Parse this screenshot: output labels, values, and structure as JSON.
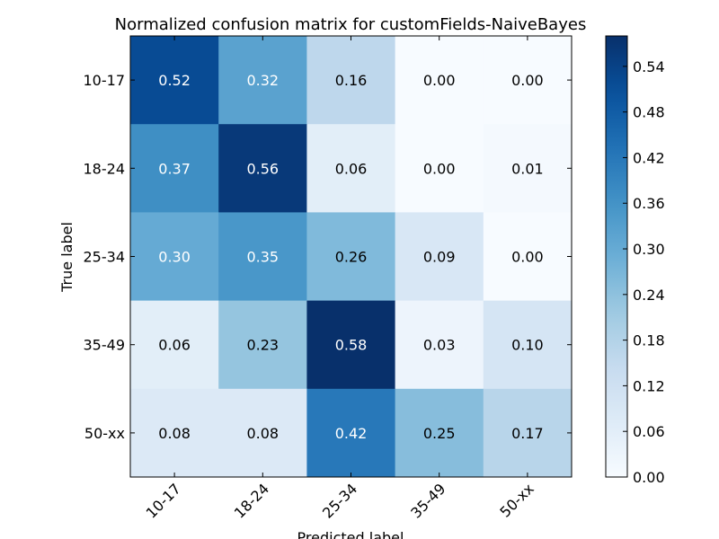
{
  "chart_data": {
    "type": "heatmap",
    "title": "Normalized confusion matrix for customFields-NaiveBayes",
    "xlabel": "Predicted label",
    "ylabel": "True label",
    "x_categories": [
      "10-17",
      "18-24",
      "25-34",
      "35-49",
      "50-xx"
    ],
    "y_categories": [
      "10-17",
      "18-24",
      "25-34",
      "35-49",
      "50-xx"
    ],
    "values": [
      [
        0.52,
        0.32,
        0.16,
        0.0,
        0.0
      ],
      [
        0.37,
        0.56,
        0.06,
        0.0,
        0.01
      ],
      [
        0.3,
        0.35,
        0.26,
        0.09,
        0.0
      ],
      [
        0.06,
        0.23,
        0.58,
        0.03,
        0.1
      ],
      [
        0.08,
        0.08,
        0.42,
        0.25,
        0.17
      ]
    ],
    "cell_labels": [
      [
        "0.52",
        "0.32",
        "0.16",
        "0.00",
        "0.00"
      ],
      [
        "0.37",
        "0.56",
        "0.06",
        "0.00",
        "0.01"
      ],
      [
        "0.30",
        "0.35",
        "0.26",
        "0.09",
        "0.00"
      ],
      [
        "0.06",
        "0.23",
        "0.58",
        "0.03",
        "0.10"
      ],
      [
        "0.08",
        "0.08",
        "0.42",
        "0.25",
        "0.17"
      ]
    ],
    "colormap": "Blues",
    "colorbar": {
      "range": [
        0.0,
        0.58
      ],
      "ticks": [
        0.0,
        0.06,
        0.12,
        0.18,
        0.24,
        0.3,
        0.36,
        0.42,
        0.48,
        0.54
      ],
      "tick_labels": [
        "0.00",
        "0.06",
        "0.12",
        "0.18",
        "0.24",
        "0.30",
        "0.36",
        "0.42",
        "0.48",
        "0.54"
      ]
    },
    "x_tick_rotation": 45,
    "grid": false
  }
}
